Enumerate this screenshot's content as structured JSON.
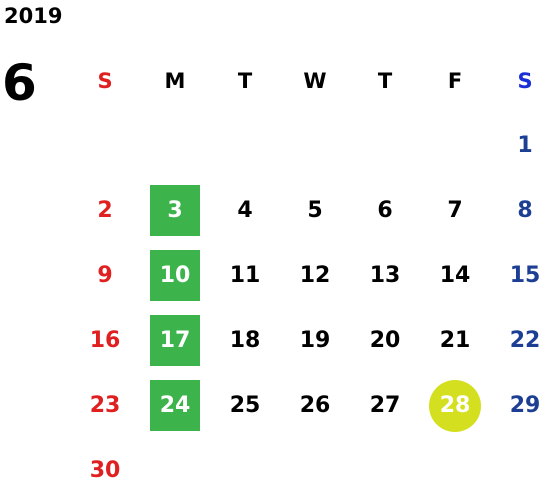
{
  "calendar": {
    "year": "2019",
    "month": "6",
    "weekdays": [
      "S",
      "M",
      "T",
      "W",
      "T",
      "F",
      "S"
    ],
    "weeks": [
      [
        "",
        "",
        "",
        "",
        "",
        "",
        "1"
      ],
      [
        "2",
        "3",
        "4",
        "5",
        "6",
        "7",
        "8"
      ],
      [
        "9",
        "10",
        "11",
        "12",
        "13",
        "14",
        "15"
      ],
      [
        "16",
        "17",
        "18",
        "19",
        "20",
        "21",
        "22"
      ],
      [
        "23",
        "24",
        "25",
        "26",
        "27",
        "28",
        "29"
      ],
      [
        "30",
        "",
        "",
        "",
        "",
        "",
        ""
      ]
    ],
    "highlight_green_days": [
      "3",
      "10",
      "17",
      "24"
    ],
    "highlight_circle_days": [
      "28"
    ],
    "colors": {
      "sunday": "#e02020",
      "saturday": "#1c3f94",
      "green_highlight": "#3cb44b",
      "circle_highlight": "#d4df1f"
    }
  }
}
